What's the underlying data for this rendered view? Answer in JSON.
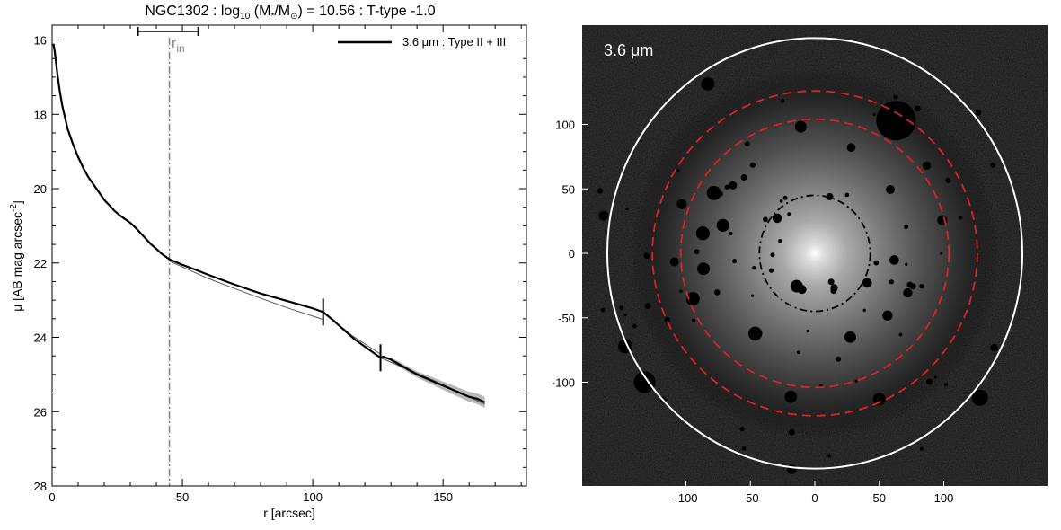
{
  "colors": {
    "profile": "#000000",
    "model": "#555555",
    "uncertainty": "#b8b8b8",
    "rin_marker": "#808080",
    "image_background": "#0d0d0d",
    "outer_ellipse": "#ffffff",
    "break_ellipse": "#dd2222",
    "inner_ellipse": "#000000"
  },
  "chart_data": [
    {
      "type": "line",
      "title_parts": {
        "prefix": "NGC1302 : log",
        "log_sub": "10",
        "mass_open": " (M",
        "mass_sub": "*",
        "mass_mid": "/M",
        "sun_sub": "⊙",
        "suffix": ") = 10.56 : T-type -1.0"
      },
      "xlabel": "r [arcsec]",
      "ylabel_parts": {
        "main": "μ [AB mag arcsec",
        "sup": "-2",
        "close": "]"
      },
      "xlim": [
        0,
        182
      ],
      "ylim": [
        28,
        15.6
      ],
      "y_inverted": true,
      "xticks": [
        0,
        50,
        100,
        150
      ],
      "yticks": [
        16,
        18,
        20,
        22,
        24,
        26,
        28
      ],
      "legend": {
        "label": "3.6 μm : Type II + III",
        "position": "top-right"
      },
      "rin": {
        "label_main": "r",
        "label_sub": "in",
        "value": 45,
        "range": [
          33,
          56
        ]
      },
      "break_markers": [
        104,
        126
      ],
      "series": [
        {
          "name": "3.6 μm : Type II + III",
          "x": [
            0.5,
            1,
            2,
            3,
            4,
            5,
            6,
            8,
            10,
            12,
            14,
            16,
            18,
            20,
            22,
            24,
            26,
            28,
            30,
            32,
            34,
            36,
            38,
            40,
            42,
            44,
            45,
            50,
            55,
            60,
            65,
            70,
            75,
            80,
            85,
            90,
            95,
            100,
            104,
            108,
            112,
            116,
            120,
            124,
            126,
            127,
            130,
            135,
            140,
            145,
            150,
            155,
            160,
            163,
            166
          ],
          "y": [
            16.1,
            16.3,
            16.9,
            17.4,
            17.8,
            18.1,
            18.4,
            18.8,
            19.15,
            19.45,
            19.7,
            19.9,
            20.1,
            20.3,
            20.45,
            20.6,
            20.72,
            20.82,
            20.92,
            21.05,
            21.2,
            21.35,
            21.5,
            21.62,
            21.75,
            21.85,
            21.9,
            22.05,
            22.18,
            22.32,
            22.45,
            22.58,
            22.7,
            22.82,
            22.92,
            23.02,
            23.12,
            23.22,
            23.32,
            23.55,
            23.8,
            24.05,
            24.25,
            24.45,
            24.55,
            24.52,
            24.6,
            24.8,
            25.0,
            25.15,
            25.3,
            25.45,
            25.6,
            25.65,
            25.75
          ]
        },
        {
          "name": "",
          "x": [
            45,
            60,
            75,
            90,
            104
          ],
          "y": [
            21.95,
            22.42,
            22.82,
            23.2,
            23.52
          ]
        },
        {
          "name": "",
          "x": [
            104,
            115,
            126
          ],
          "y": [
            23.32,
            23.95,
            24.45
          ]
        },
        {
          "name": "",
          "x": [
            126,
            146,
            166
          ],
          "y": [
            24.55,
            25.15,
            25.8
          ]
        }
      ]
    },
    {
      "type": "image",
      "band_label": "3.6 μm",
      "xlim": [
        -180,
        180
      ],
      "ylim": [
        -180,
        180
      ],
      "xticks": [
        -100,
        -50,
        0,
        50,
        100
      ],
      "yticks": [
        100,
        50,
        0,
        -50,
        -100
      ],
      "ellipses": [
        {
          "name": "outer-fit-ellipse",
          "cx": 0,
          "cy": 0,
          "rx": 161,
          "ry": 167,
          "style": "solid",
          "color": "white"
        },
        {
          "name": "outer-break-ellipse",
          "cx": 0,
          "cy": 0,
          "rx": 126,
          "ry": 126,
          "style": "dashed",
          "color": "red"
        },
        {
          "name": "inner-break-ellipse",
          "cx": 0,
          "cy": 0,
          "rx": 104,
          "ry": 104,
          "style": "dashed",
          "color": "red"
        },
        {
          "name": "rin-ellipse",
          "cx": 0,
          "cy": 0,
          "rx": 43,
          "ry": 45,
          "style": "dashdot",
          "color": "black"
        }
      ]
    }
  ]
}
